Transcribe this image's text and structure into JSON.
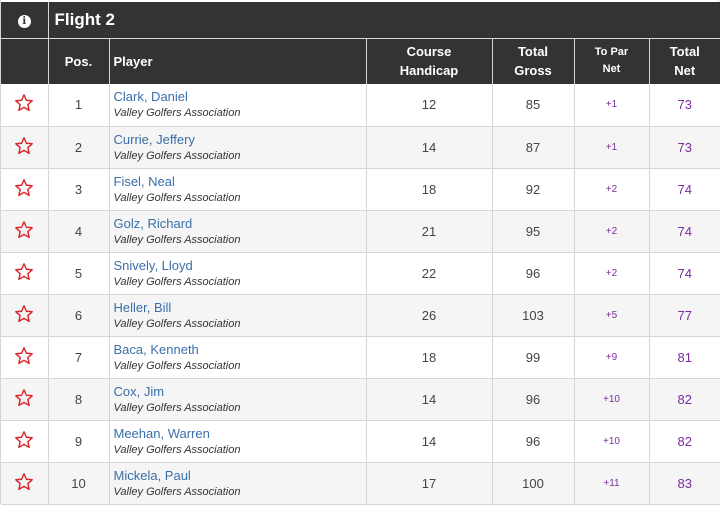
{
  "flight": {
    "title": "Flight 2"
  },
  "headers": {
    "pos": "Pos.",
    "player": "Player",
    "course_handicap_1": "Course",
    "course_handicap_2": "Handicap",
    "total_gross_1": "Total",
    "total_gross_2": "Gross",
    "to_par_1": "To Par",
    "to_par_2": "Net",
    "total_net_1": "Total",
    "total_net_2": "Net"
  },
  "colors": {
    "header_bg": "#333333",
    "star": "#d9262a",
    "link": "#3a6ea8",
    "net": "#7b2d9e"
  },
  "rows": [
    {
      "pos": "1",
      "name": "Clark, Daniel",
      "assoc": "Valley Golfers Association",
      "handicap": "12",
      "gross": "85",
      "topar": "+1",
      "net": "73"
    },
    {
      "pos": "2",
      "name": "Currie, Jeffery",
      "assoc": "Valley Golfers Association",
      "handicap": "14",
      "gross": "87",
      "topar": "+1",
      "net": "73"
    },
    {
      "pos": "3",
      "name": "Fisel, Neal",
      "assoc": "Valley Golfers Association",
      "handicap": "18",
      "gross": "92",
      "topar": "+2",
      "net": "74"
    },
    {
      "pos": "4",
      "name": "Golz, Richard",
      "assoc": "Valley Golfers Association",
      "handicap": "21",
      "gross": "95",
      "topar": "+2",
      "net": "74"
    },
    {
      "pos": "5",
      "name": "Snively, Lloyd",
      "assoc": "Valley Golfers Association",
      "handicap": "22",
      "gross": "96",
      "topar": "+2",
      "net": "74"
    },
    {
      "pos": "6",
      "name": "Heller, Bill",
      "assoc": "Valley Golfers Association",
      "handicap": "26",
      "gross": "103",
      "topar": "+5",
      "net": "77"
    },
    {
      "pos": "7",
      "name": "Baca, Kenneth",
      "assoc": "Valley Golfers Association",
      "handicap": "18",
      "gross": "99",
      "topar": "+9",
      "net": "81"
    },
    {
      "pos": "8",
      "name": "Cox, Jim",
      "assoc": "Valley Golfers Association",
      "handicap": "14",
      "gross": "96",
      "topar": "+10",
      "net": "82"
    },
    {
      "pos": "9",
      "name": "Meehan, Warren",
      "assoc": "Valley Golfers Association",
      "handicap": "14",
      "gross": "96",
      "topar": "+10",
      "net": "82"
    },
    {
      "pos": "10",
      "name": "Mickela, Paul",
      "assoc": "Valley Golfers Association",
      "handicap": "17",
      "gross": "100",
      "topar": "+11",
      "net": "83"
    }
  ]
}
